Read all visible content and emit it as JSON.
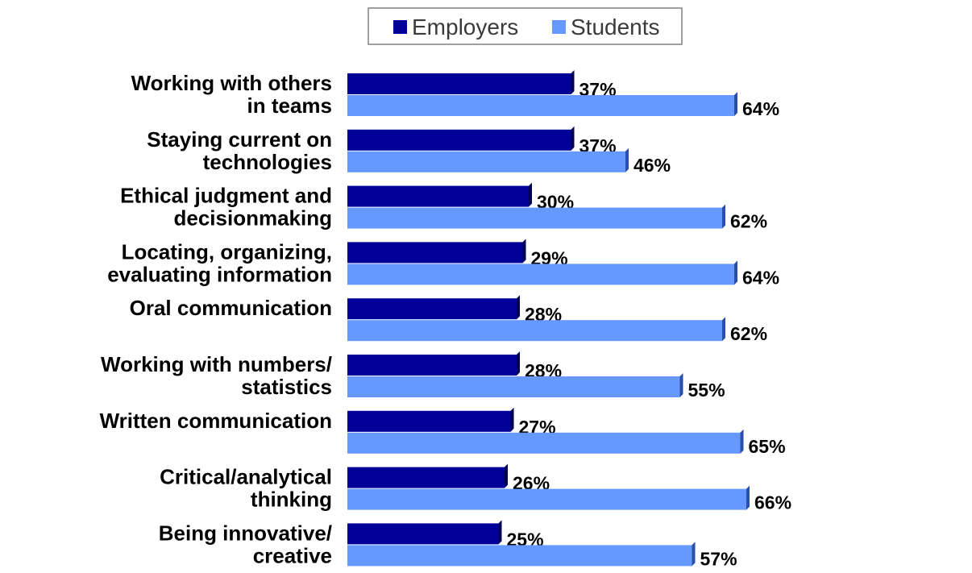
{
  "chart_data": {
    "type": "bar",
    "orientation": "horizontal",
    "categories": [
      [
        "Working with others",
        "in teams"
      ],
      [
        "Staying current on",
        "technologies"
      ],
      [
        "Ethical judgment and",
        "decisionmaking"
      ],
      [
        "Locating, organizing,",
        "evaluating information"
      ],
      [
        "Oral communication"
      ],
      [
        "Working with numbers/",
        "statistics"
      ],
      [
        "Written communication"
      ],
      [
        "Critical/analytical",
        "thinking"
      ],
      [
        "Being innovative/",
        "creative"
      ]
    ],
    "series": [
      {
        "name": "Employers",
        "color": "#000099",
        "values": [
          37,
          37,
          30,
          29,
          28,
          28,
          27,
          26,
          25
        ]
      },
      {
        "name": "Students",
        "color": "#6699ff",
        "values": [
          64,
          46,
          62,
          64,
          62,
          55,
          65,
          66,
          57
        ]
      }
    ],
    "value_suffix": "%",
    "xlim": [
      0,
      100
    ],
    "legend": {
      "position": "top-center"
    },
    "grid": false
  }
}
